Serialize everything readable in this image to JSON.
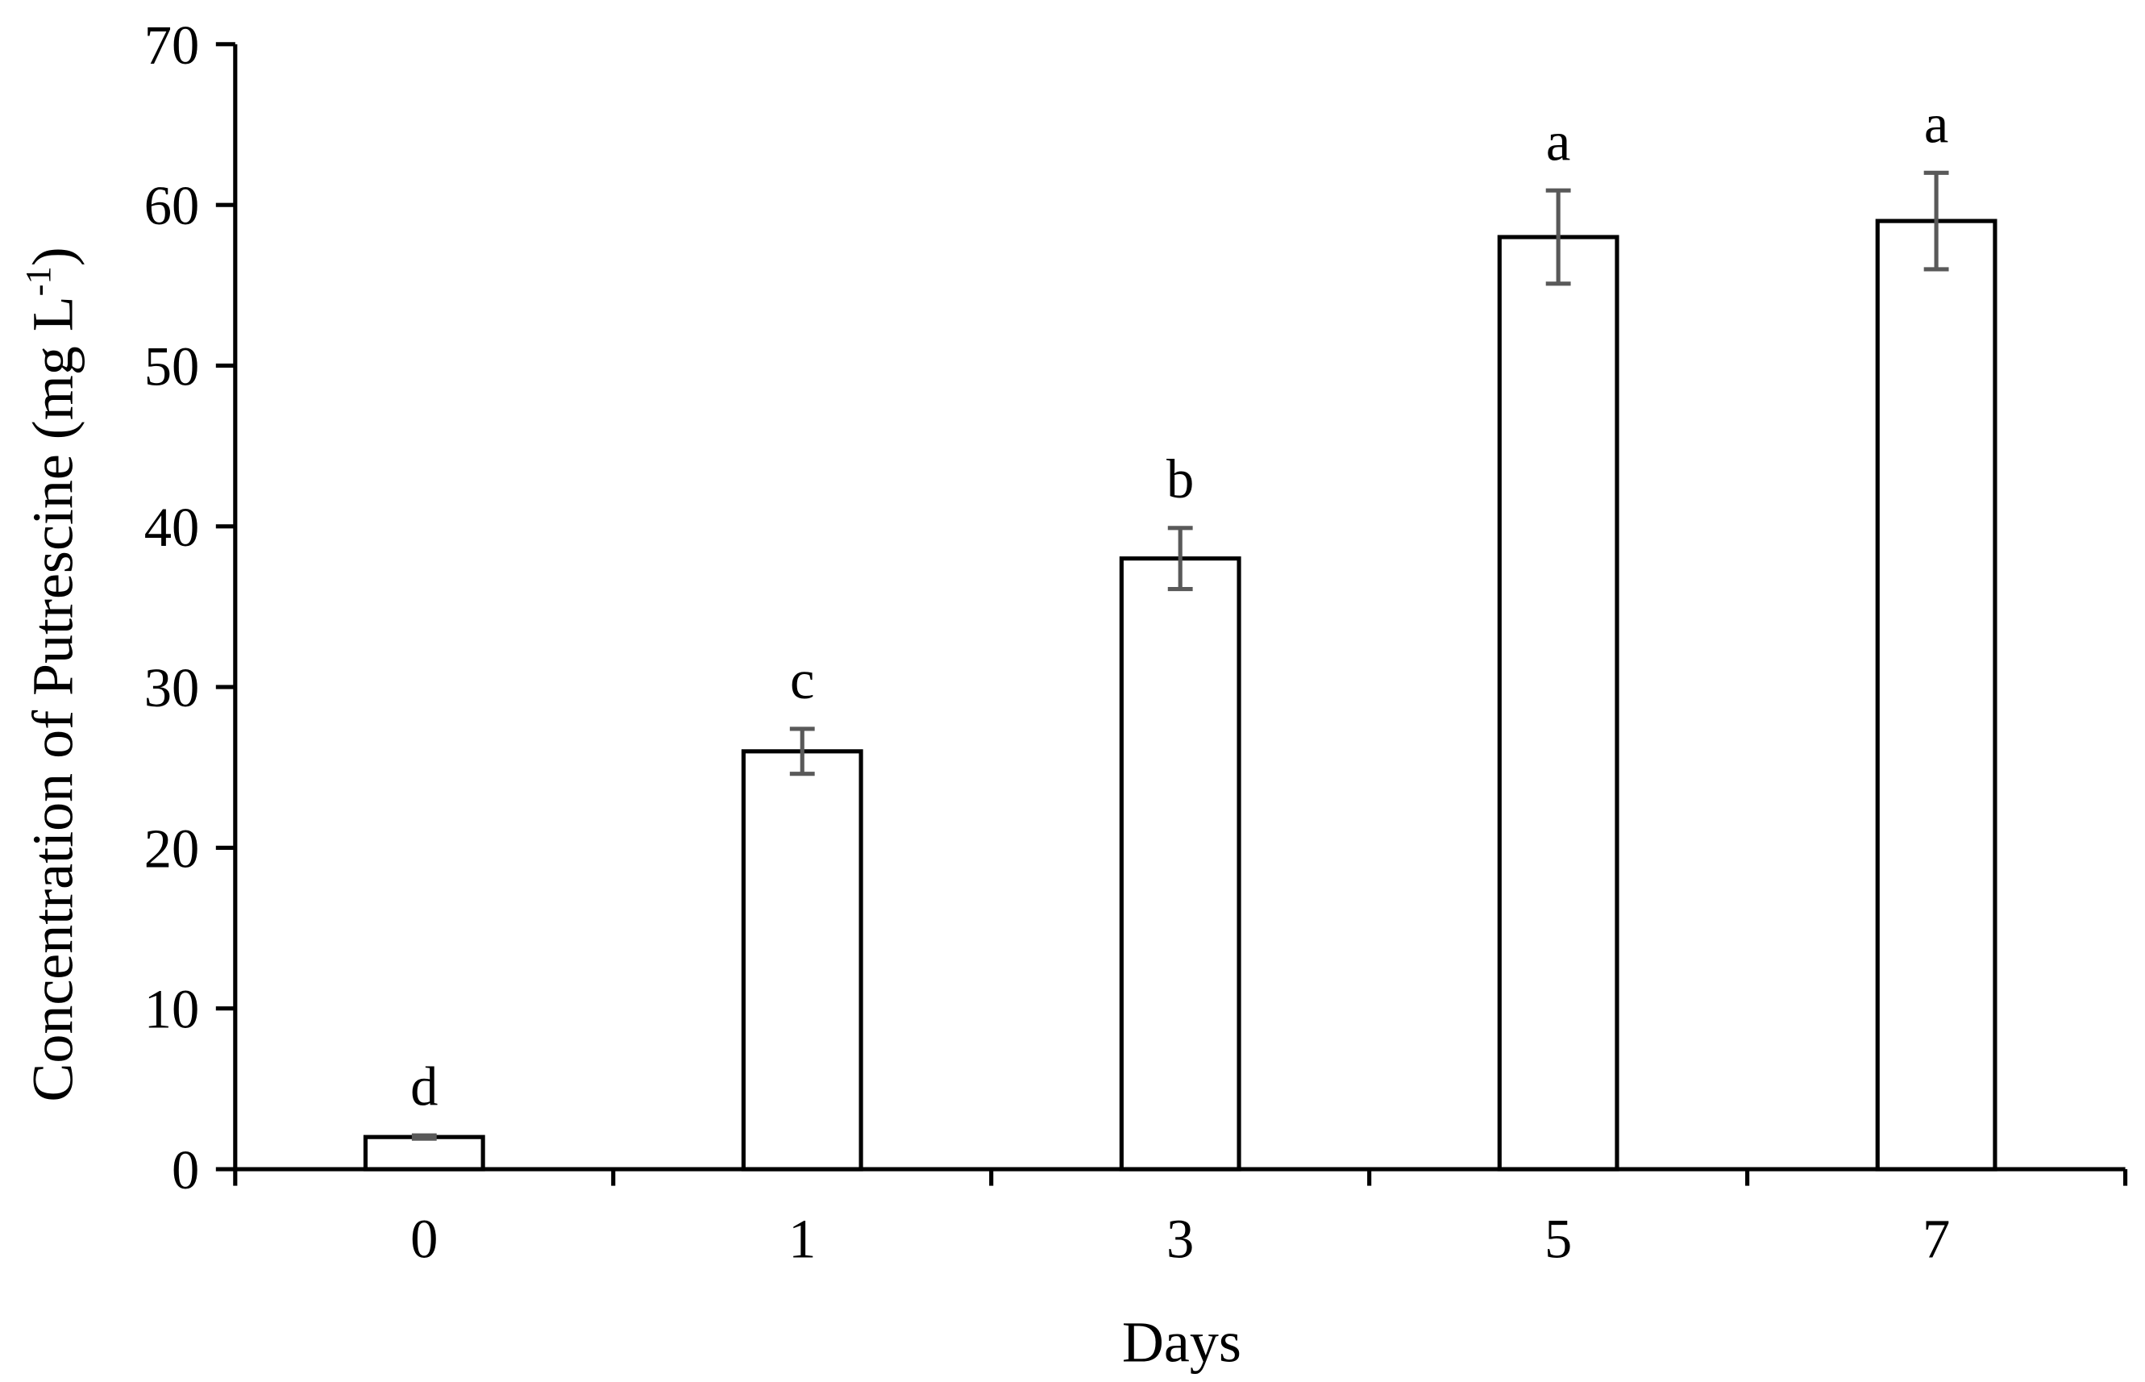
{
  "chart_data": {
    "type": "bar",
    "x_label": "Days",
    "y_label": {
      "text": "Concentration of Putrescine (mg L",
      "superscript": "-1",
      "suffix": ")"
    },
    "categories": [
      "0",
      "1",
      "3",
      "5",
      "7"
    ],
    "values": [
      2,
      26,
      38,
      58,
      59
    ],
    "errors": [
      0.1,
      1.4,
      1.9,
      2.9,
      3.0
    ],
    "letters": [
      "d",
      "c",
      "b",
      "a",
      "a"
    ],
    "color": "#ffffff",
    "edge_color": "#000000",
    "error_color": "#595959",
    "ylim": [
      0,
      70
    ],
    "yticks": [
      0,
      10,
      20,
      30,
      40,
      50,
      60,
      70
    ]
  }
}
